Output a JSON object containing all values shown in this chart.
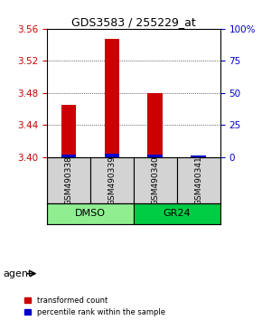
{
  "title": "GDS3583 / 255229_at",
  "samples": [
    "GSM490338",
    "GSM490339",
    "GSM490340",
    "GSM490341"
  ],
  "red_values": [
    3.465,
    3.548,
    3.48,
    3.4
  ],
  "blue_values": [
    3.403,
    3.404,
    3.403,
    3.402
  ],
  "y_min": 3.4,
  "y_max": 3.56,
  "y_ticks": [
    3.4,
    3.44,
    3.48,
    3.52,
    3.56
  ],
  "y_right_ticks": [
    0,
    25,
    50,
    75,
    100
  ],
  "y_right_labels": [
    "0",
    "25",
    "50",
    "75",
    "100%"
  ],
  "gridlines": [
    3.44,
    3.48,
    3.52
  ],
  "groups": [
    {
      "label": "DMSO",
      "samples": [
        0,
        1
      ],
      "color": "#90EE90"
    },
    {
      "label": "GR24",
      "samples": [
        2,
        3
      ],
      "color": "#00CC44"
    }
  ],
  "bar_width": 0.35,
  "red_color": "#CC0000",
  "blue_color": "#0000CC",
  "agent_label": "agent",
  "legend_red": "transformed count",
  "legend_blue": "percentile rank within the sample",
  "tick_color_left": "#CC0000",
  "tick_color_right": "#0000CC",
  "sample_box_color": "#D3D3D3"
}
